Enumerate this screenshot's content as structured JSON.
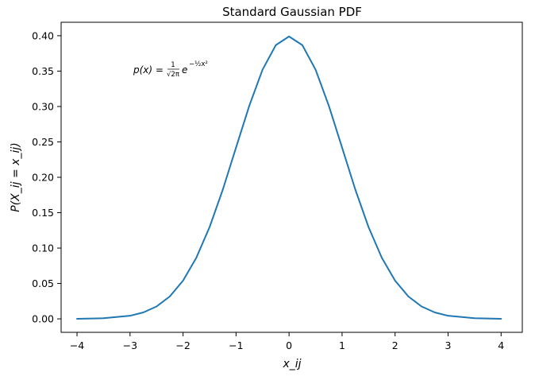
{
  "chart_data": {
    "type": "line",
    "title": "Standard Gaussian PDF",
    "xlabel": "x_ij",
    "ylabel": "P(X_ij = x_ij)",
    "xlim": [
      -4.3,
      4.4
    ],
    "ylim": [
      -0.019,
      0.419
    ],
    "x_ticks": [
      -4,
      -3,
      -2,
      -1,
      0,
      1,
      2,
      3,
      4
    ],
    "x_tick_labels": [
      "−4",
      "−3",
      "−2",
      "−1",
      "0",
      "1",
      "2",
      "3",
      "4"
    ],
    "y_ticks": [
      0.0,
      0.05,
      0.1,
      0.15,
      0.2,
      0.25,
      0.3,
      0.35,
      0.4
    ],
    "y_tick_labels": [
      "0.00",
      "0.05",
      "0.10",
      "0.15",
      "0.20",
      "0.25",
      "0.30",
      "0.35",
      "0.40"
    ],
    "grid": false,
    "series": [
      {
        "color": "#1f77b4",
        "x": [
          -4.0,
          -3.5,
          -3.0,
          -2.75,
          -2.5,
          -2.25,
          -2.0,
          -1.75,
          -1.5,
          -1.25,
          -1.0,
          -0.75,
          -0.5,
          -0.25,
          0.0,
          0.25,
          0.5,
          0.75,
          1.0,
          1.25,
          1.5,
          1.75,
          2.0,
          2.25,
          2.5,
          2.75,
          3.0,
          3.5,
          4.0
        ],
        "y": [
          0.0001,
          0.0009,
          0.0044,
          0.0091,
          0.0175,
          0.0317,
          0.054,
          0.0863,
          0.1295,
          0.1826,
          0.242,
          0.3011,
          0.3521,
          0.3867,
          0.3989,
          0.3867,
          0.3521,
          0.3011,
          0.242,
          0.1826,
          0.1295,
          0.0863,
          0.054,
          0.0317,
          0.0175,
          0.0091,
          0.0044,
          0.0009,
          0.0001
        ]
      }
    ],
    "annotation": {
      "x": -3.0,
      "y": 0.35,
      "lhs": "p(x) =",
      "frac_num": "1",
      "frac_den": "√2π",
      "base": "e",
      "exponent": "−½x²"
    }
  }
}
